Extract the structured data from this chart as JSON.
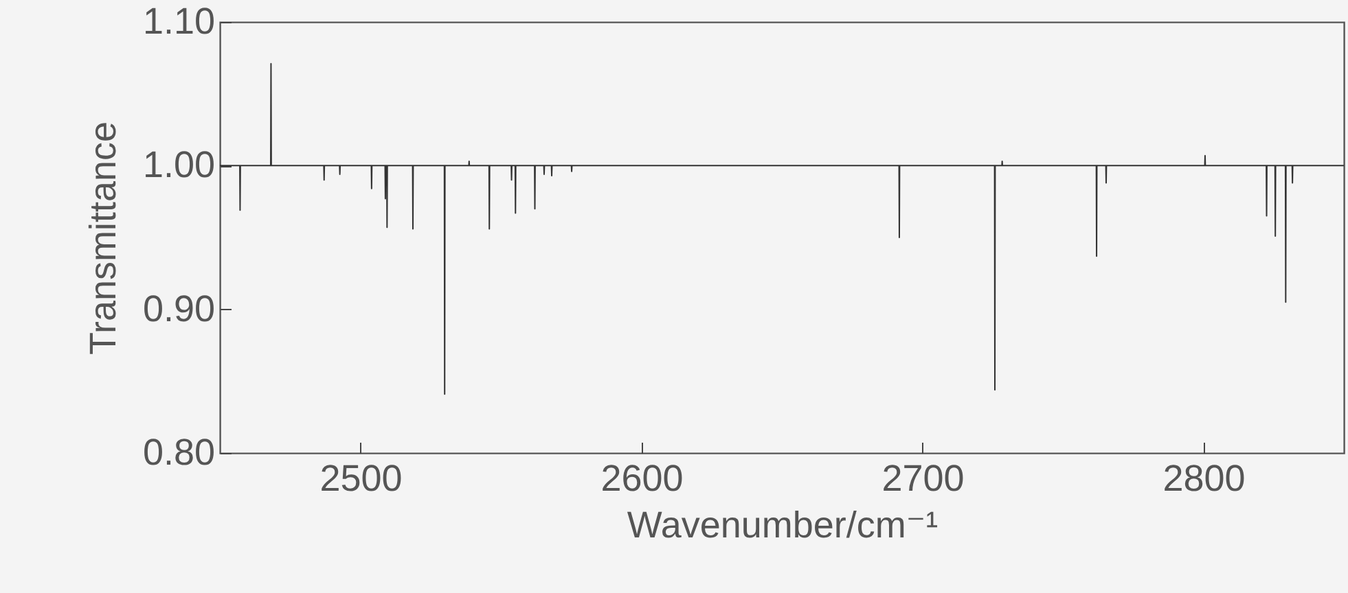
{
  "chart_data": {
    "type": "line",
    "xlabel": "Wavenumber/cm⁻¹",
    "ylabel": "Transmittance",
    "xlim": [
      2450,
      2850
    ],
    "ylim": [
      0.8,
      1.1
    ],
    "xticks": [
      2500,
      2600,
      2700,
      2800
    ],
    "yticks": [
      {
        "value": 0.8,
        "label": "0.80"
      },
      {
        "value": 0.9,
        "label": "0.90"
      },
      {
        "value": 1.0,
        "label": "1.00"
      },
      {
        "value": 1.1,
        "label": "1.10"
      }
    ],
    "grid": false,
    "marker": "none",
    "line_style": "solid",
    "x": [
      2450,
      2457.1,
      2457.2,
      2457.3,
      2468.1,
      2468.2,
      2468.3,
      2487.0,
      2487.1,
      2487.2,
      2492.6,
      2492.7,
      2492.8,
      2503.9,
      2504.0,
      2504.1,
      2508.8,
      2508.9,
      2509.0,
      2509.4,
      2509.5,
      2509.6,
      2518.6,
      2518.7,
      2518.8,
      2529.9,
      2530.0,
      2530.1,
      2538.6,
      2538.7,
      2538.8,
      2545.8,
      2545.9,
      2546.0,
      2553.7,
      2553.8,
      2553.9,
      2555.1,
      2555.2,
      2555.3,
      2562.0,
      2562.1,
      2562.2,
      2565.3,
      2565.4,
      2565.5,
      2568.0,
      2568.1,
      2568.2,
      2575.1,
      2575.2,
      2575.3,
      2691.7,
      2691.8,
      2691.9,
      2725.7,
      2725.8,
      2725.9,
      2728.3,
      2728.4,
      2728.5,
      2761.9,
      2762.0,
      2762.1,
      2765.3,
      2765.4,
      2765.5,
      2800.5,
      2800.6,
      2800.7,
      2822.4,
      2822.5,
      2822.6,
      2825.5,
      2825.6,
      2825.7,
      2829.2,
      2829.3,
      2829.4,
      2831.6,
      2831.7,
      2831.8,
      2850
    ],
    "series": [
      {
        "color": "#333333",
        "values": [
          1.0,
          1.0,
          0.969,
          1.0,
          1.0,
          1.071,
          1.0,
          1.0,
          0.99,
          1.0,
          1.0,
          0.994,
          1.0,
          1.0,
          0.984,
          1.0,
          1.0,
          0.977,
          1.0,
          1.0,
          0.957,
          1.0,
          1.0,
          0.956,
          1.0,
          1.0,
          0.841,
          1.0,
          1.0,
          1.003,
          1.0,
          1.0,
          0.956,
          1.0,
          1.0,
          0.99,
          1.0,
          1.0,
          0.967,
          1.0,
          1.0,
          0.97,
          1.0,
          1.0,
          0.994,
          1.0,
          1.0,
          0.993,
          1.0,
          1.0,
          0.996,
          1.0,
          1.0,
          0.95,
          1.0,
          1.0,
          0.844,
          1.0,
          1.0,
          1.003,
          1.0,
          1.0,
          0.937,
          1.0,
          1.0,
          0.988,
          1.0,
          1.0,
          1.007,
          1.0,
          1.0,
          0.965,
          1.0,
          1.0,
          0.951,
          1.0,
          1.0,
          0.905,
          1.0,
          1.0,
          0.988,
          1.0,
          1.0
        ]
      }
    ]
  }
}
